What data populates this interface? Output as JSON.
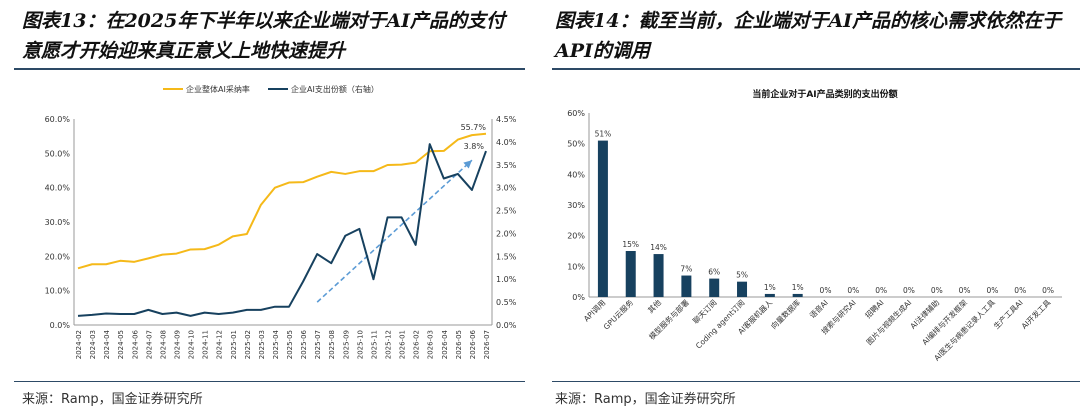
{
  "left_panel": {
    "title": "图表13：在2025年下半年以来企业端对于AI产品的支付意愿才开始迎来真正意义上地快速提升",
    "source": "来源：Ramp，国金证券研究所"
  },
  "right_panel": {
    "title": "图表14：截至当前，企业端对于AI产品的核心需求依然在于API的调用",
    "source": "来源：Ramp，国金证券研究所"
  },
  "chart_data": [
    {
      "type": "line",
      "x": [
        "2024-02",
        "2024-03",
        "2024-04",
        "2024-05",
        "2024-06",
        "2024-07",
        "2024-08",
        "2024-09",
        "2024-10",
        "2024-11",
        "2024-12",
        "2025-01",
        "2025-02",
        "2025-03",
        "2025-04",
        "2025-05",
        "2025-06",
        "2025-07",
        "2025-08",
        "2025-09",
        "2025-10",
        "2025-11",
        "2025-12",
        "2026-01",
        "2026-02",
        "2026-03",
        "2026-04",
        "2026-05",
        "2026-06",
        "2026-07"
      ],
      "series": [
        {
          "name": "企业整体AI采纳率",
          "axis": "left",
          "color": "#f5b919",
          "values": [
            16.5,
            17.7,
            17.7,
            18.7,
            18.4,
            19.4,
            20.5,
            20.8,
            22.0,
            22.1,
            23.4,
            25.8,
            26.5,
            35.0,
            40.0,
            41.5,
            41.6,
            43.2,
            44.6,
            44.0,
            44.8,
            44.8,
            46.6,
            46.7,
            47.3,
            50.6,
            50.7,
            54.0,
            55.3,
            55.7
          ]
        },
        {
          "name": "企业AI支出份额（右轴）",
          "axis": "right",
          "color": "#17415f",
          "values": [
            0.2,
            0.22,
            0.25,
            0.24,
            0.24,
            0.33,
            0.24,
            0.27,
            0.2,
            0.27,
            0.24,
            0.27,
            0.33,
            0.33,
            0.4,
            0.4,
            0.95,
            1.55,
            1.35,
            1.95,
            2.1,
            1.0,
            2.35,
            2.35,
            1.75,
            3.95,
            3.2,
            3.3,
            2.95,
            3.8
          ]
        }
      ],
      "annotations": [
        "55.7%",
        "3.8%"
      ],
      "trend_arrow": {
        "from": [
          "2025-07",
          0.5
        ],
        "to": [
          "2026-06",
          3.6
        ],
        "color": "#5b9bd5"
      },
      "left_yticks": [
        "0.0%",
        "10.0%",
        "20.0%",
        "30.0%",
        "40.0%",
        "50.0%",
        "60.0%"
      ],
      "left_ylim": [
        0,
        60
      ],
      "right_yticks": [
        "0.0%",
        "0.5%",
        "1.0%",
        "1.5%",
        "2.0%",
        "2.5%",
        "3.0%",
        "3.5%",
        "4.0%",
        "4.5%"
      ],
      "right_ylim": [
        0,
        4.5
      ],
      "legend_position": "top",
      "grid": false
    },
    {
      "type": "bar",
      "title": "当前企业对于AI产品类别的支出份额",
      "categories": [
        "API调用",
        "GPU云服务",
        "其他",
        "模型服务与部署",
        "聊天订阅",
        "Coding agent订阅",
        "AI客服机器人",
        "向量数据库",
        "语音AI",
        "搜索与研究AI",
        "招聘AI",
        "图片与视频生成AI",
        "AI法律辅助",
        "AI编排与开发框架",
        "AI医生与病患记录人工具",
        "生产工具AI",
        "AI开发工具"
      ],
      "values": [
        51,
        15,
        14,
        7,
        6,
        5,
        1,
        1,
        0,
        0,
        0,
        0,
        0,
        0,
        0,
        0,
        0
      ],
      "labels": [
        "51%",
        "15%",
        "14%",
        "7%",
        "6%",
        "5%",
        "1%",
        "1%",
        "0%",
        "0%",
        "0%",
        "0%",
        "0%",
        "0%",
        "0%",
        "0%",
        "0%"
      ],
      "yticks": [
        "0%",
        "10%",
        "20%",
        "30%",
        "40%",
        "50%",
        "60%"
      ],
      "ylim": [
        0,
        60
      ],
      "color": "#17415f",
      "grid": false
    }
  ]
}
